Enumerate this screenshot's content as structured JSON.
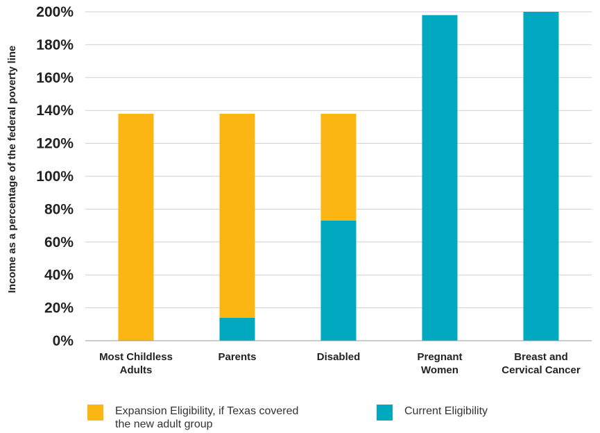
{
  "chart_data": {
    "type": "bar",
    "stacked": true,
    "categories": [
      [
        "Most Childless",
        "Adults"
      ],
      [
        "Parents"
      ],
      [
        "Disabled"
      ],
      [
        "Pregnant",
        "Women"
      ],
      [
        "Breast and",
        "Cervical Cancer"
      ]
    ],
    "series": [
      {
        "name": "Current Eligibility",
        "color": "#00a9bf",
        "values": [
          0,
          14,
          73,
          198,
          200
        ]
      },
      {
        "name": "Expansion Eligibility, if Texas covered the new adult group",
        "color": "#fbb614",
        "values": [
          138,
          124,
          65,
          0,
          0
        ]
      }
    ],
    "title": "",
    "xlabel": "",
    "ylabel": "Income as a percentage of the federal poverty line",
    "ylim": [
      0,
      200
    ],
    "yticks": [
      "0%",
      "20%",
      "40%",
      "60%",
      "80%",
      "100%",
      "120%",
      "140%",
      "160%",
      "180%",
      "200%"
    ],
    "ytick_values": [
      0,
      20,
      40,
      60,
      80,
      100,
      120,
      140,
      160,
      180,
      200
    ],
    "grid": true,
    "legend_position": "bottom"
  },
  "legend": {
    "expansion_label_line1": "Expansion Eligibility, if Texas covered",
    "expansion_label_line2": "the new adult group",
    "current_label": "Current Eligibility"
  }
}
